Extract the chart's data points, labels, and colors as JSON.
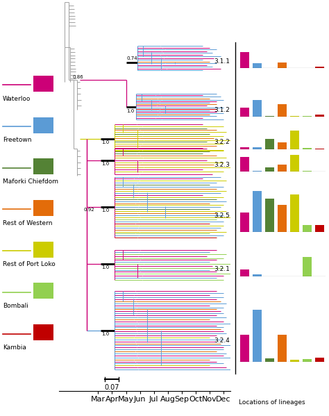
{
  "colors": {
    "waterloo": "#CC0077",
    "freetown": "#5B9BD5",
    "maforki": "#548235",
    "western": "#E36C09",
    "portloko": "#CCCC00",
    "bombali": "#92D050",
    "kambia": "#C00000",
    "gray": "#999999",
    "black": "#000000"
  },
  "legend": [
    {
      "label": "Waterloo",
      "line": "#CC0077",
      "box": "#CC0077"
    },
    {
      "label": "Freetown",
      "line": "#5B9BD5",
      "box": "#5B9BD5"
    },
    {
      "label": "Maforki Chiefdom",
      "line": "#548235",
      "box": "#548235"
    },
    {
      "label": "Rest of Western",
      "line": "#E36C09",
      "box": "#E36C09"
    },
    {
      "label": "Rest of Port Loko",
      "line": "#CCCC00",
      "box": "#CCCC00"
    },
    {
      "label": "Bombali",
      "line": "#92D050",
      "box": "#92D050"
    },
    {
      "label": "Kambia",
      "line": "#C00000",
      "box": "#C00000"
    }
  ],
  "x_labels": [
    "Mar",
    "Apr",
    "May",
    "Jun",
    "Jul",
    "Aug",
    "Sep",
    "Oct",
    "Nov",
    "Dec"
  ],
  "scale_bar": "0.07",
  "locations_label": "Locations of lineages",
  "bar_data": {
    "3.1.1": [
      0.8,
      0.22,
      0.01,
      0.28,
      0.01,
      0.01,
      0.08
    ],
    "3.1.2": [
      0.38,
      0.72,
      0.03,
      0.52,
      0.04,
      0.03,
      0.09
    ],
    "3.2.2": [
      0.07,
      0.08,
      0.48,
      0.32,
      0.88,
      0.04,
      0.02
    ],
    "3.2.3": [
      0.68,
      0.02,
      0.2,
      0.33,
      0.8,
      0.02,
      0.01
    ],
    "3.2.5": [
      0.42,
      0.88,
      0.72,
      0.58,
      0.8,
      0.14,
      0.14
    ],
    "3.2.1": [
      0.22,
      0.08,
      0.01,
      0.01,
      0.01,
      0.62,
      0.01
    ],
    "3.2.4": [
      0.48,
      0.92,
      0.06,
      0.48,
      0.03,
      0.05,
      0.07
    ]
  },
  "bar_order": [
    "3.1.1",
    "3.1.2",
    "3.2.2",
    "3.2.3",
    "3.2.5",
    "3.2.1",
    "3.2.4"
  ],
  "bar_colors": [
    "#CC0077",
    "#5B9BD5",
    "#548235",
    "#E36C09",
    "#CCCC00",
    "#92D050",
    "#C00000"
  ]
}
